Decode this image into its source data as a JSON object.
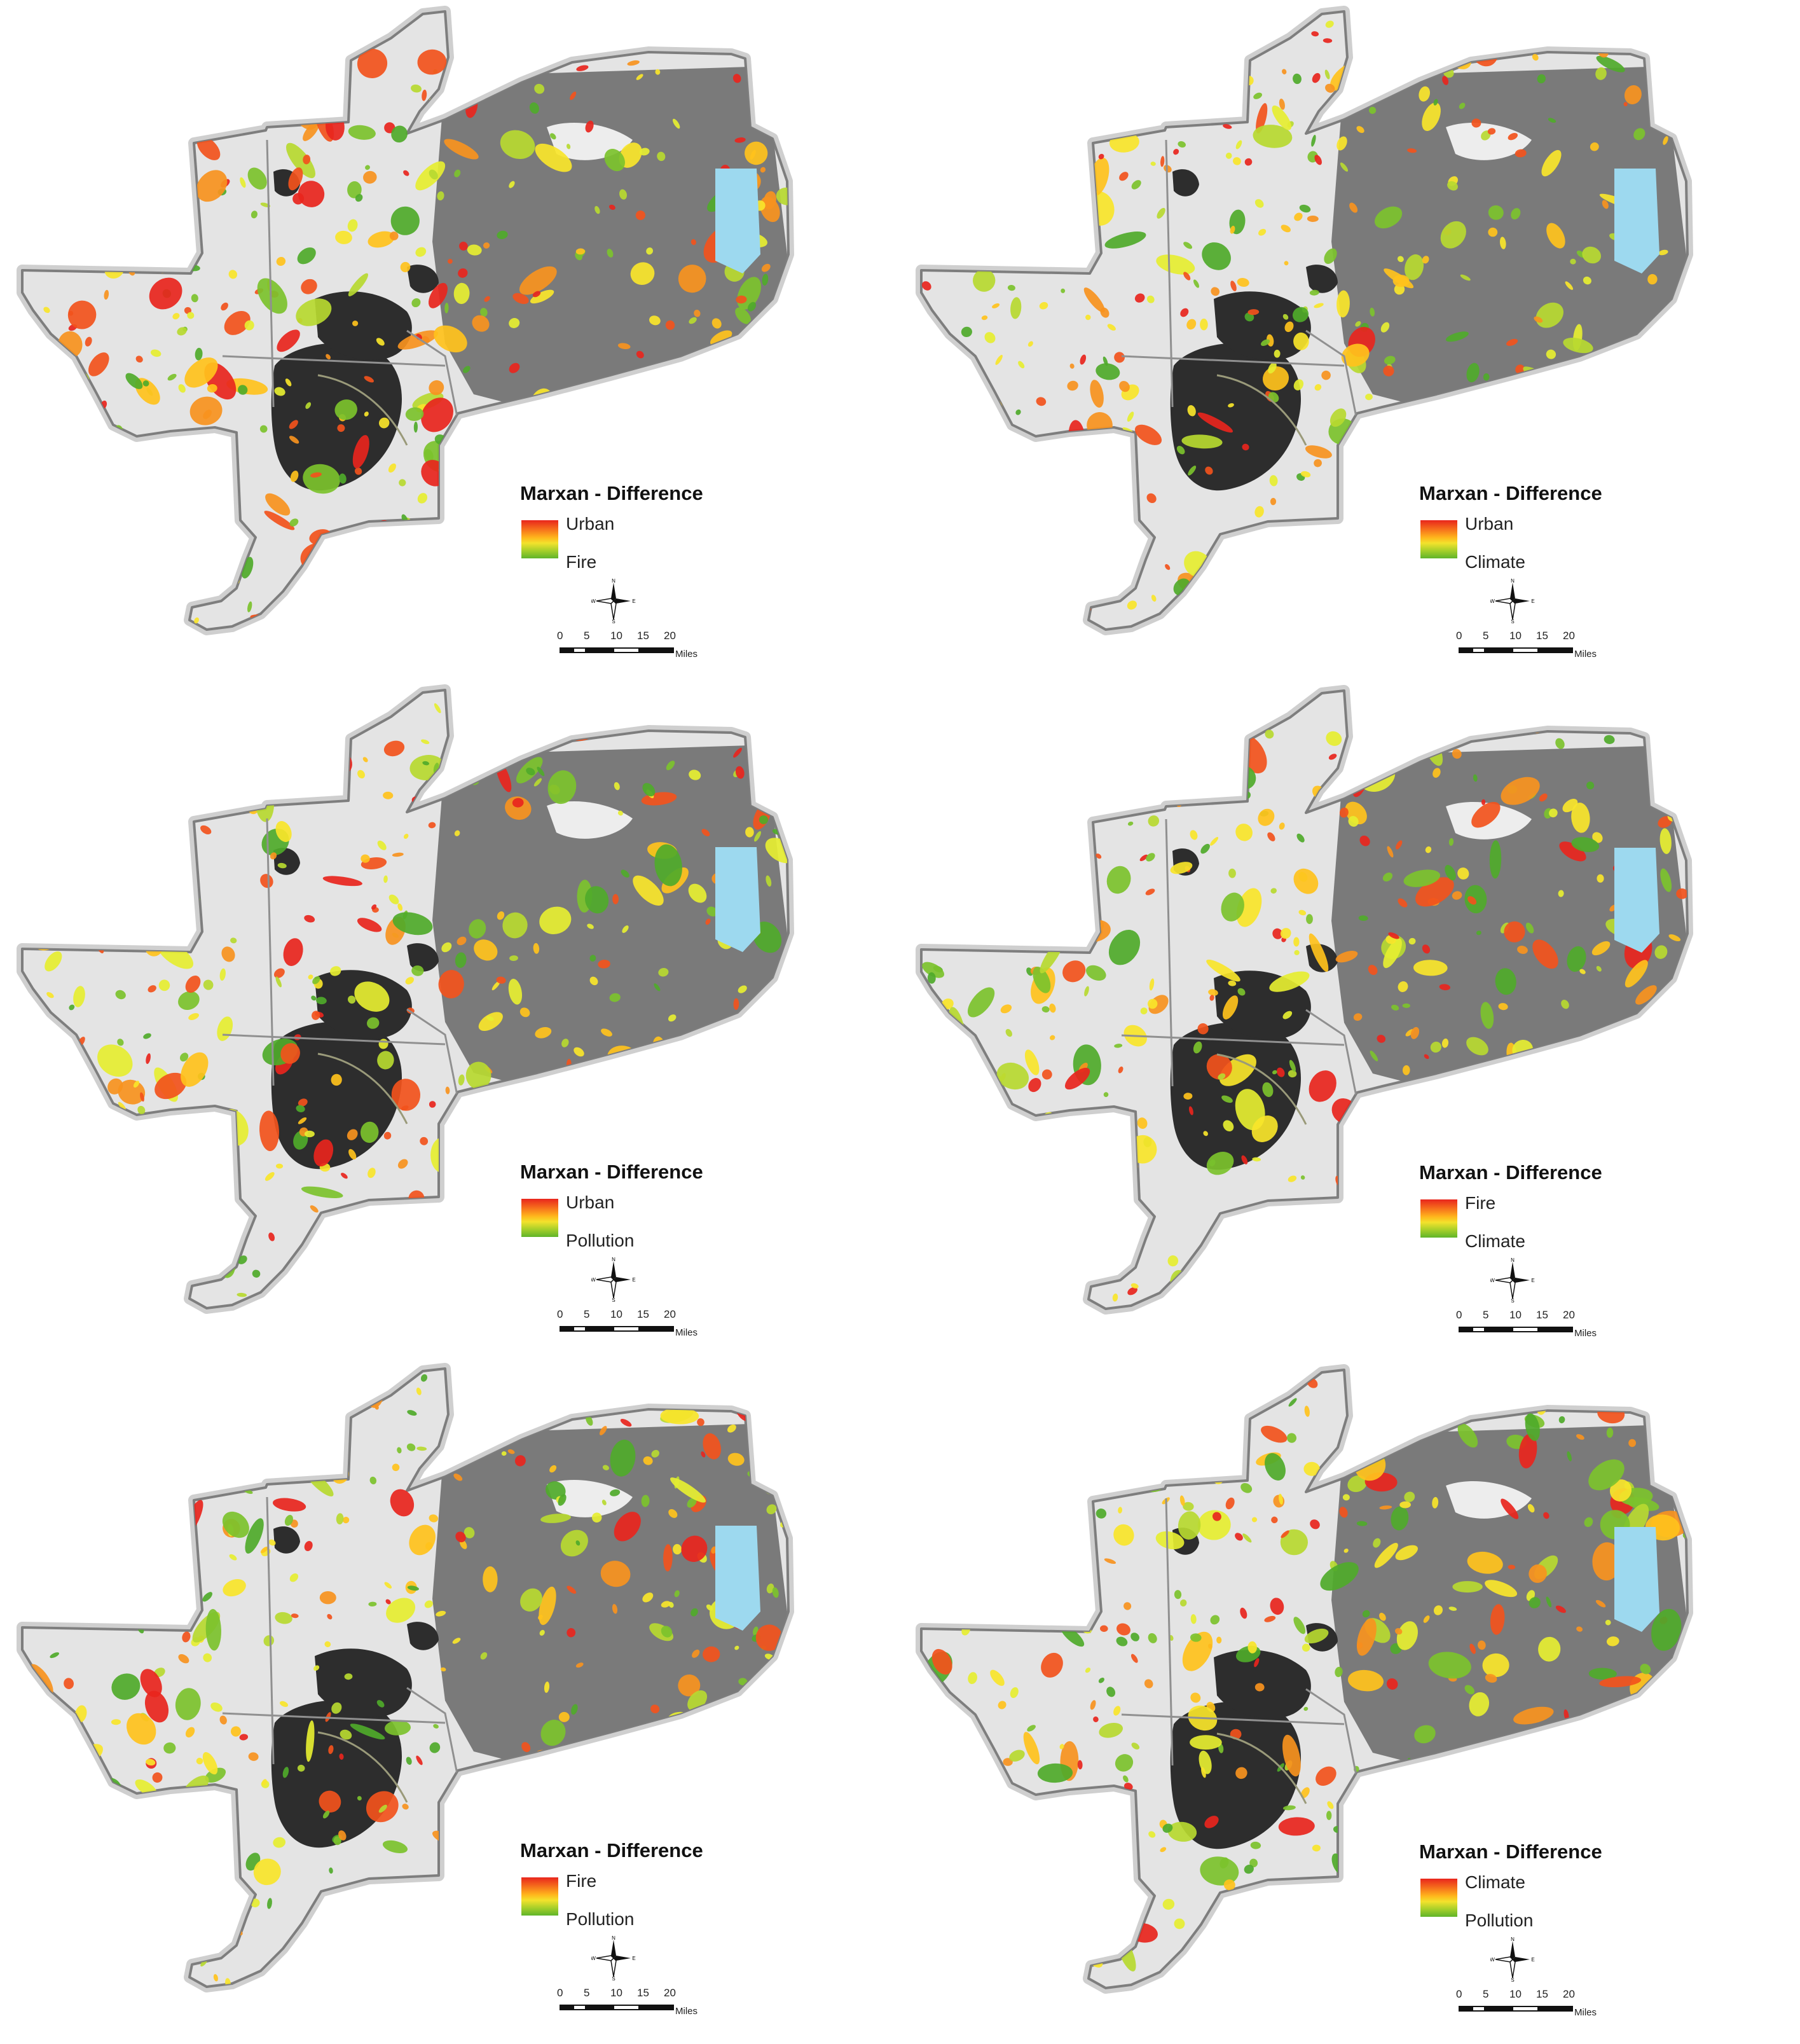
{
  "figure": {
    "panels": [
      {
        "id": "urban-fire",
        "legend_title": "Marxan - Difference",
        "high_label": "Urban",
        "low_label": "Fire"
      },
      {
        "id": "urban-climate",
        "legend_title": "Marxan - Difference",
        "high_label": "Urban",
        "low_label": "Climate"
      },
      {
        "id": "urban-pollution",
        "legend_title": "Marxan - Difference",
        "high_label": "Urban",
        "low_label": "Pollution"
      },
      {
        "id": "fire-climate",
        "legend_title": "Marxan - Difference",
        "high_label": "Fire",
        "low_label": "Climate"
      },
      {
        "id": "fire-pollution",
        "legend_title": "Marxan - Difference",
        "high_label": "Fire",
        "low_label": "Pollution"
      },
      {
        "id": "climate-pollution",
        "legend_title": "Marxan - Difference",
        "high_label": "Climate",
        "low_label": "Pollution"
      }
    ],
    "scale_bar": {
      "ticks": [
        "0",
        "5",
        "10",
        "15",
        "20"
      ],
      "units": "Miles"
    },
    "compass": {
      "north": "N",
      "south": "S",
      "east": "E",
      "west": "W"
    }
  },
  "colors": {
    "ramp_high": "#e8251d",
    "ramp_mid": "#f3e22c",
    "ramp_low": "#5fb42a",
    "urban_dark": "#2d2d2d",
    "mountain_gray": "#7a7a7a",
    "valley_light": "#e4e4e4",
    "lake_blue": "#9dd9ef",
    "boundary": "#888888"
  }
}
